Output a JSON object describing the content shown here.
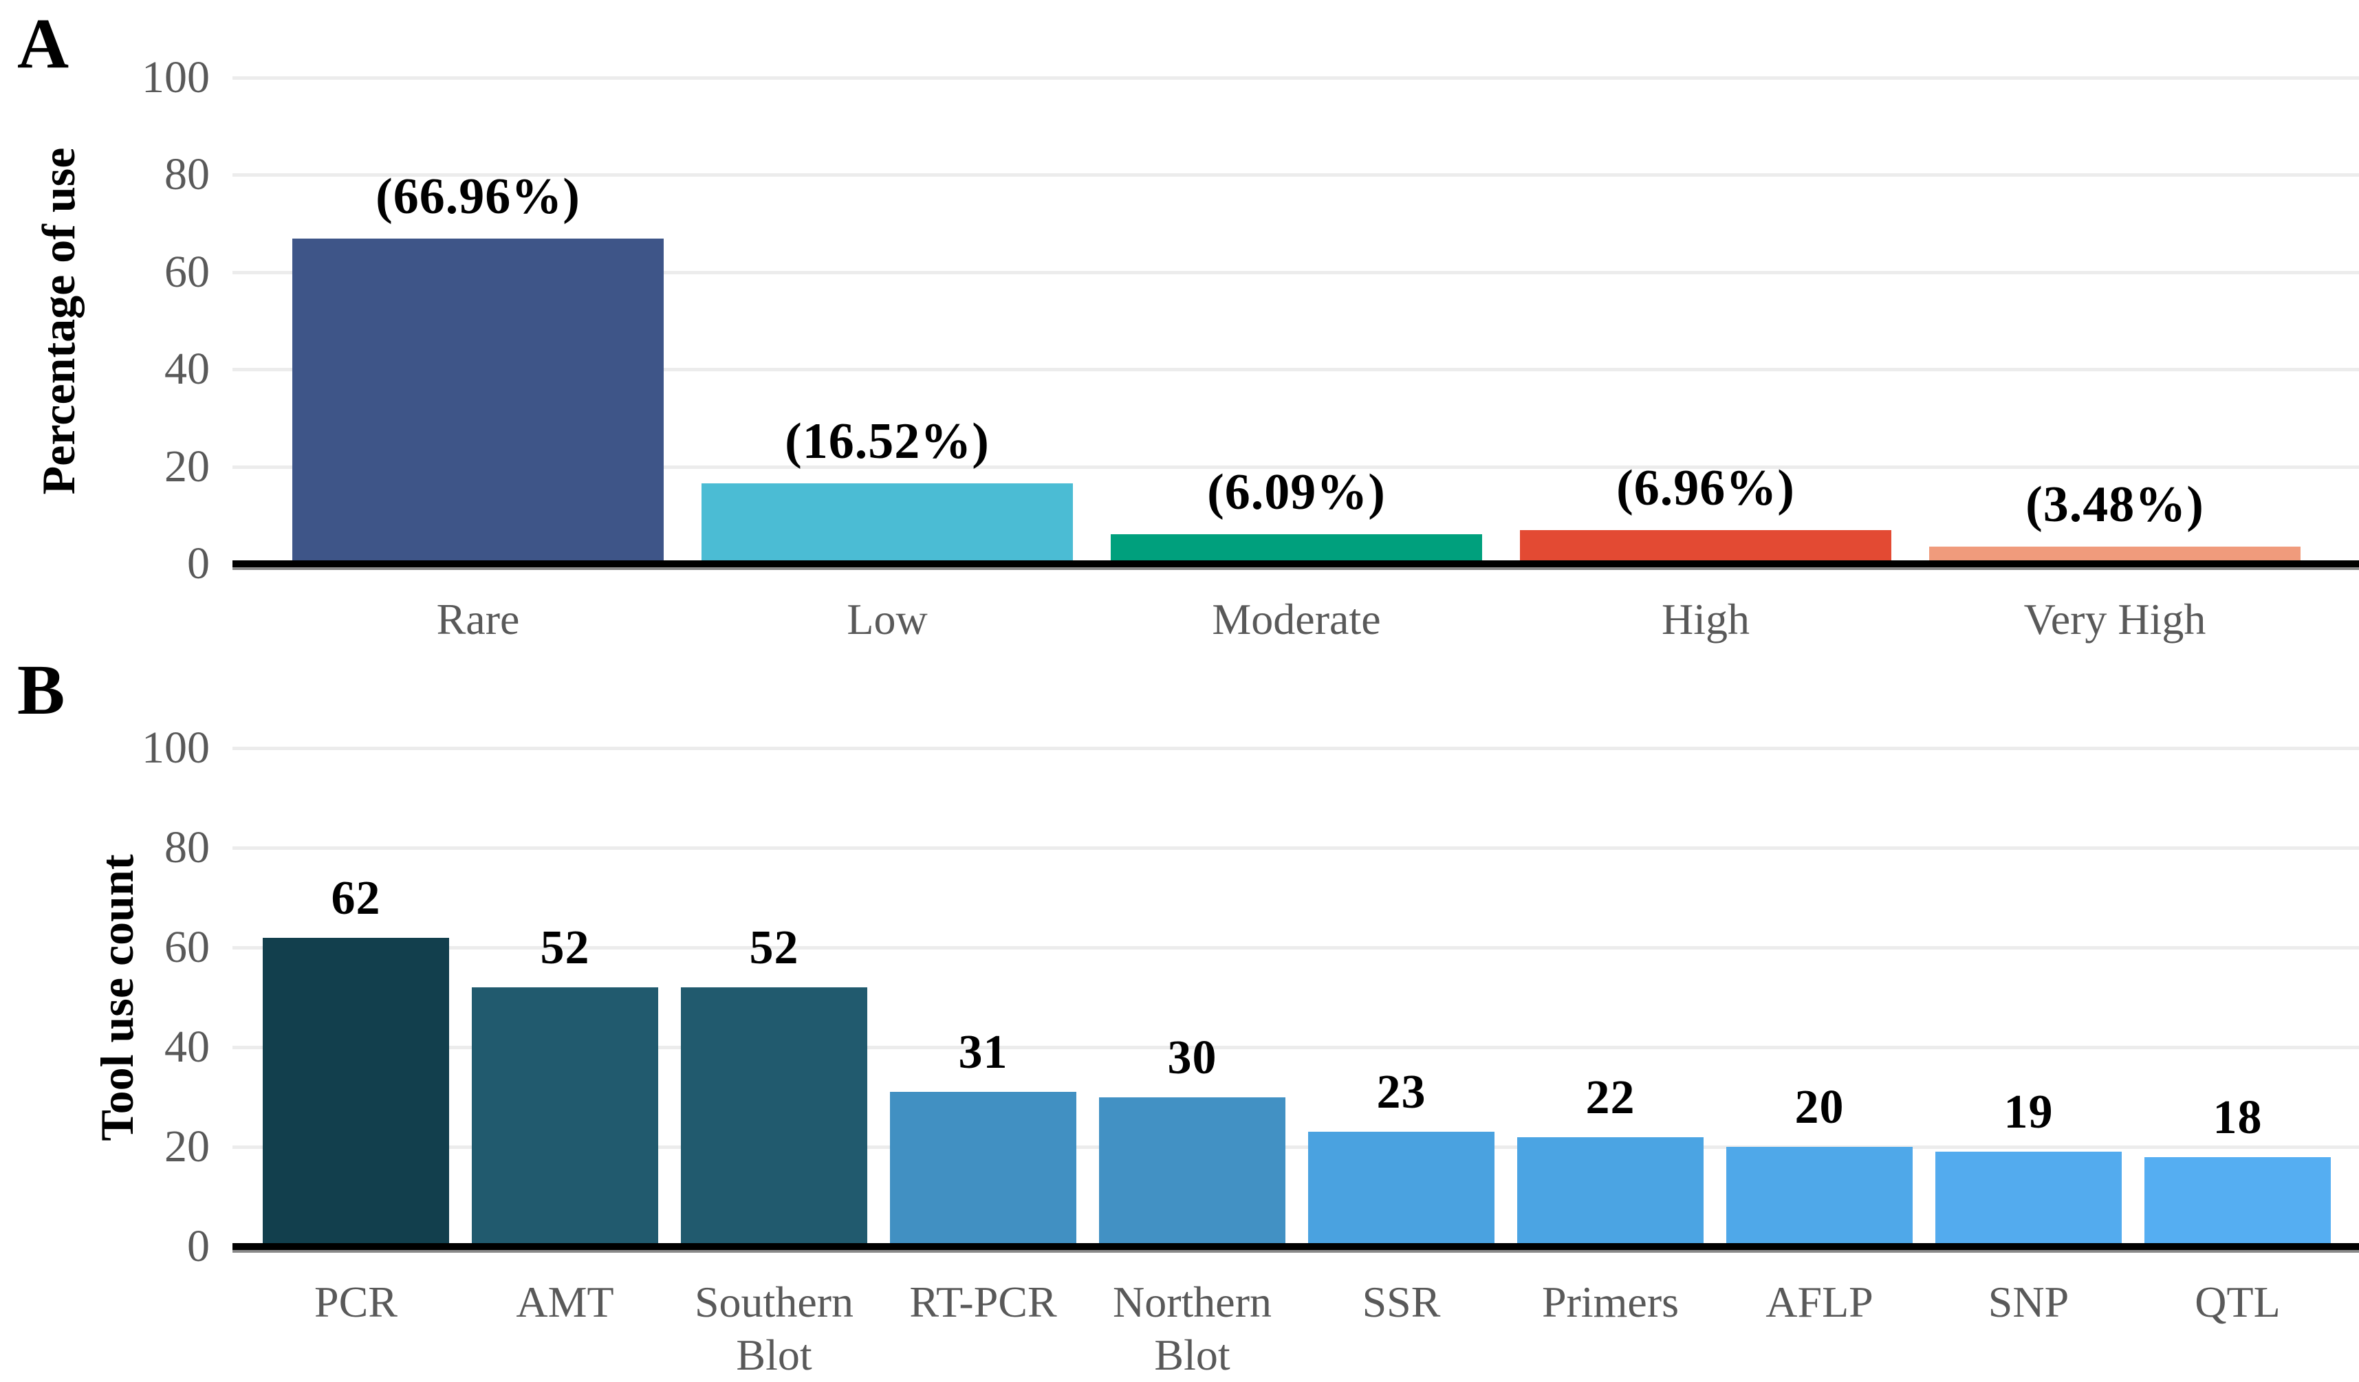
{
  "figure_title": "",
  "styles": {
    "background": "#ffffff",
    "grid_color": "#ececec",
    "axis_color": "#000000",
    "axis_shadow_color": "#8a8a8a",
    "tick_label_color": "#595959",
    "category_label_color": "#595959",
    "value_label_color": "#000000"
  },
  "chart_data": [
    {
      "type": "bar",
      "panel_label": "A",
      "title": "",
      "xlabel": "",
      "ylabel": "Percentage of use",
      "ylim": [
        0,
        100
      ],
      "yticks": [
        "0",
        "20",
        "40",
        "60",
        "80",
        "100"
      ],
      "grid": true,
      "legend": false,
      "categories": [
        "Rare",
        "Low",
        "Moderate",
        "High",
        "Very High"
      ],
      "values": [
        66.96,
        16.52,
        6.09,
        6.96,
        3.48
      ],
      "value_labels": [
        "(66.96%)",
        "(16.52%)",
        "(6.09%)",
        "(6.96%)",
        "(3.48%)"
      ],
      "bar_colors": [
        "#3e5588",
        "#4bbcd4",
        "#00a07d",
        "#e34a33",
        "#f09b7c"
      ]
    },
    {
      "type": "bar",
      "panel_label": "B",
      "title": "",
      "xlabel": "",
      "ylabel": "Tool use count",
      "ylim": [
        0,
        100
      ],
      "yticks": [
        "0",
        "20",
        "40",
        "60",
        "80",
        "100"
      ],
      "grid": true,
      "legend": false,
      "categories": [
        "PCR",
        "AMT",
        "Southern Blot",
        "RT-PCR",
        "Northern Blot",
        "SSR",
        "Primers",
        "AFLP",
        "SNP",
        "QTL"
      ],
      "values": [
        62,
        52,
        52,
        31,
        30,
        23,
        22,
        20,
        19,
        18
      ],
      "value_labels": [
        "62",
        "52",
        "52",
        "31",
        "30",
        "23",
        "22",
        "20",
        "19",
        "18"
      ],
      "bar_colors": [
        "#123f4d",
        "#215a6e",
        "#215a6e",
        "#4190c2",
        "#4291c4",
        "#4aa2e0",
        "#4ba4e3",
        "#4fa8e9",
        "#53abee",
        "#55aef2"
      ]
    }
  ]
}
